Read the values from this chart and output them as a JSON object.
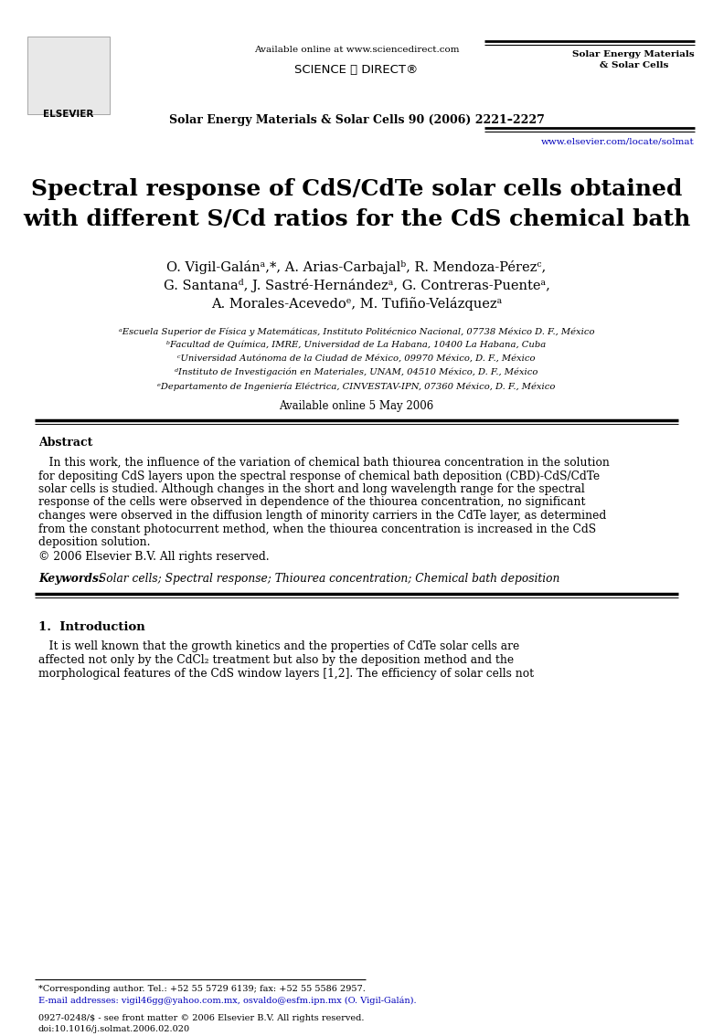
{
  "bg_color": "#ffffff",
  "available_online_header": "Available online at www.sciencedirect.com",
  "sciencedirect_logo": "SCIENCE ⓓ DIRECT®",
  "journal_name_center": "Solar Energy Materials & Solar Cells 90 (2006) 2221–2227",
  "journal_name_right": "Solar Energy Materials\n& Solar Cells",
  "url": "www.elsevier.com/locate/solmat",
  "title_line1": "Spectral response of CdS/CdTe solar cells obtained",
  "title_line2": "with different S/Cd ratios for the CdS chemical bath",
  "author_line1": "O. Vigil-Galánᵃ,*, A. Arias-Carbajalᵇ, R. Mendoza-Pérezᶜ,",
  "author_line2": "G. Santanaᵈ, J. Sastré-Hernándezᵃ, G. Contreras-Puenteᵃ,",
  "author_line3": "A. Morales-Acevedoᵉ, M. Tufiño-Velázquezᵃ",
  "aff1": "ᵃEscuela Superior de Física y Matemáticas, Instituto Politécnico Nacional, 07738 México D. F., México",
  "aff2": "ᵇFacultad de Química, IMRE, Universidad de La Habana, 10400 La Habana, Cuba",
  "aff3": "ᶜUniversidad Autónoma de la Ciudad de México, 09970 México, D. F., México",
  "aff4": "ᵈInstituto de Investigación en Materiales, UNAM, 04510 México, D. F., México",
  "aff5": "ᵉDepartamento de Ingeniería Eléctrica, CINVESTAV-IPN, 07360 México, D. F., México",
  "available_date": "Available online 5 May 2006",
  "abstract_heading": "Abstract",
  "abstract_para": "   In this work, the influence of the variation of chemical bath thiourea concentration in the solution\nfor depositing CdS layers upon the spectral response of chemical bath deposition (CBD)-CdS/CdTe\nsolar cells is studied. Although changes in the short and long wavelength range for the spectral\nresponse of the cells were observed in dependence of the thiourea concentration, no significant\nchanges were observed in the diffusion length of minority carriers in the CdTe layer, as determined\nfrom the constant photocurrent method, when the thiourea concentration is increased in the CdS\ndeposition solution.",
  "copyright": "© 2006 Elsevier B.V. All rights reserved.",
  "keywords_label": "Keywords:",
  "keywords_text": " Solar cells; Spectral response; Thiourea concentration; Chemical bath deposition",
  "sec1_title": "1.  Introduction",
  "sec1_line1": "   It is well known that the growth kinetics and the properties of CdTe solar cells are",
  "sec1_line2": "affected not only by the CdCl₂ treatment but also by the deposition method and the",
  "sec1_line3": "morphological features of the CdS window layers [1,2]. The efficiency of solar cells not",
  "footnote_line": "*Corresponding author. Tel.: +52 55 5729 6139; fax: +52 55 5586 2957.",
  "email_line": "E-mail addresses: vigil46gg@yahoo.com.mx, osvaldo@esfm.ipn.mx (O. Vigil-Galán).",
  "issn_line": "0927-0248/$ - see front matter © 2006 Elsevier B.V. All rights reserved.",
  "doi_line": "doi:10.1016/j.solmat.2006.02.020"
}
